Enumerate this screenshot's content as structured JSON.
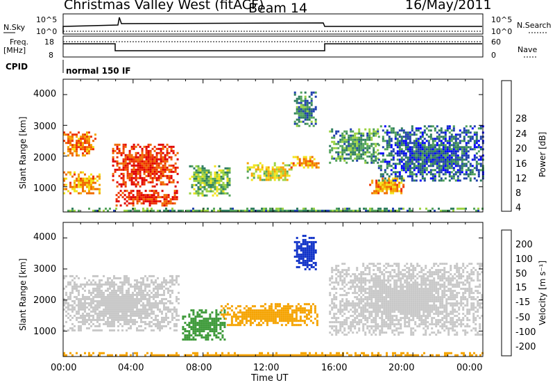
{
  "header": {
    "station": "Christmas Valley West (fitACF)",
    "beam": "Beam 14",
    "date": "16/May/2011"
  },
  "summary_panels": {
    "nsky_label": "N.Sky",
    "nsky_ticks": [
      "10^5",
      "10^0"
    ],
    "nsearch_label": "N.Search",
    "nsearch_ticks": [
      "10^5",
      "10^0"
    ],
    "freq_label": "Freq.",
    "freq_unit": "[MHz]",
    "freq_ticks": [
      "18",
      "8"
    ],
    "nave_label": "Nave",
    "nave_ticks": [
      "60",
      "0"
    ],
    "cpid_label": "CPID",
    "cpid_value": "normal 150 IF"
  },
  "chart_data": [
    {
      "type": "heatmap",
      "name": "power",
      "ylabel": "Slant Range [km]",
      "ylim": [
        180,
        4500
      ],
      "yticks": [
        "4000",
        "3000",
        "2000",
        "1000"
      ],
      "xlim": [
        "00:00",
        "24:00"
      ],
      "colorbar": {
        "label": "Power [dB]",
        "ticks": [
          "28",
          "24",
          "20",
          "16",
          "12",
          "8",
          "4"
        ],
        "colors": [
          "#0000ff",
          "#1f3fae",
          "#2e7d5e",
          "#52a35a",
          "#9bd241",
          "#f2e31a",
          "#f5a300",
          "#f06b00",
          "#ee3300",
          "#e00000"
        ]
      },
      "features": [
        {
          "t_start": 0.0,
          "t_end": 1.8,
          "r_start": 2000,
          "r_end": 2800,
          "value": 22
        },
        {
          "t_start": 0.0,
          "t_end": 2.2,
          "r_start": 800,
          "r_end": 1500,
          "value": 20
        },
        {
          "t_start": 2.8,
          "t_end": 6.6,
          "r_start": 1000,
          "r_end": 2400,
          "value": 26
        },
        {
          "t_start": 3.0,
          "t_end": 6.5,
          "r_start": 400,
          "r_end": 900,
          "value": 26
        },
        {
          "t_start": 7.2,
          "t_end": 9.5,
          "r_start": 700,
          "r_end": 1700,
          "value": 12
        },
        {
          "t_start": 10.5,
          "t_end": 13.0,
          "r_start": 1200,
          "r_end": 1800,
          "value": 16
        },
        {
          "t_start": 13.0,
          "t_end": 14.6,
          "r_start": 1600,
          "r_end": 2000,
          "value": 20
        },
        {
          "t_start": 13.2,
          "t_end": 14.5,
          "r_start": 3000,
          "r_end": 4100,
          "value": 8
        },
        {
          "t_start": 15.2,
          "t_end": 18.0,
          "r_start": 1800,
          "r_end": 2900,
          "value": 10
        },
        {
          "t_start": 17.5,
          "t_end": 19.5,
          "r_start": 800,
          "r_end": 1300,
          "value": 20
        },
        {
          "t_start": 18.0,
          "t_end": 24.0,
          "r_start": 1200,
          "r_end": 3000,
          "value": 6
        },
        {
          "t_start": 0.0,
          "t_end": 24.0,
          "r_start": 200,
          "r_end": 320,
          "value": 10
        }
      ]
    },
    {
      "type": "heatmap",
      "name": "velocity",
      "ylabel": "Slant Range [km]",
      "ylim": [
        180,
        4500
      ],
      "yticks": [
        "4000",
        "3000",
        "2000",
        "1000"
      ],
      "xlabel": "Time UT",
      "xticks": [
        "00:00",
        "04:00",
        "08:00",
        "12:00",
        "16:00",
        "20:00",
        "00:00"
      ],
      "colorbar": {
        "label": "Velocity [m s⁻¹]",
        "ticks": [
          "200",
          "100",
          "50",
          "15",
          "-15",
          "-50",
          "-100",
          "-200"
        ],
        "colors": [
          "#e00000",
          "#f05a00",
          "#f5a300",
          "#c8c8c8",
          "#7fd341",
          "#3e9a3a",
          "#1f58b8",
          "#1133c8"
        ]
      },
      "features": [
        {
          "t_start": 0.0,
          "t_end": 6.6,
          "r_start": 1000,
          "r_end": 2800,
          "value": 0
        },
        {
          "t_start": 6.8,
          "t_end": 9.2,
          "r_start": 700,
          "r_end": 1700,
          "value": 60
        },
        {
          "t_start": 9.0,
          "t_end": 14.5,
          "r_start": 1200,
          "r_end": 1900,
          "value": -40
        },
        {
          "t_start": 13.2,
          "t_end": 14.5,
          "r_start": 3000,
          "r_end": 4100,
          "value": 250
        },
        {
          "t_start": 15.2,
          "t_end": 24.0,
          "r_start": 900,
          "r_end": 3200,
          "value": 0
        },
        {
          "t_start": 0.0,
          "t_end": 24.0,
          "r_start": 200,
          "r_end": 320,
          "value": -60
        }
      ]
    }
  ]
}
